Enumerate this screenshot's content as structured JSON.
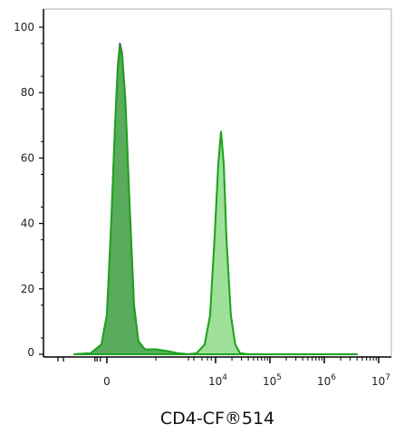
{
  "chart_data": {
    "type": "area",
    "title": "",
    "xlabel": "CD4-CF®514",
    "ylabel": "",
    "ylim": [
      0,
      105
    ],
    "grid": false,
    "legend": "none",
    "x_scale": "biexponential",
    "y_ticks": [
      {
        "value": 0,
        "label": "0"
      },
      {
        "value": 20,
        "label": "20"
      },
      {
        "value": 40,
        "label": "40"
      },
      {
        "value": 60,
        "label": "60"
      },
      {
        "value": 80,
        "label": "80"
      },
      {
        "value": 100,
        "label": "100"
      }
    ],
    "x_ticks": [
      {
        "label": "0",
        "exp": ""
      },
      {
        "label": "10",
        "exp": "4"
      },
      {
        "label": "10",
        "exp": "5"
      },
      {
        "label": "10",
        "exp": "6"
      },
      {
        "label": "10",
        "exp": "7"
      }
    ],
    "series": [
      {
        "fill": "#8a8a8a",
        "stroke": "#555555",
        "points": [
          [
            -0.6,
            0
          ],
          [
            -0.3,
            0.3
          ],
          [
            -0.1,
            3
          ],
          [
            0.0,
            12
          ],
          [
            0.08,
            40
          ],
          [
            0.15,
            70
          ],
          [
            0.2,
            88
          ],
          [
            0.24,
            95
          ],
          [
            0.28,
            92
          ],
          [
            0.34,
            78
          ],
          [
            0.42,
            45
          ],
          [
            0.5,
            15
          ],
          [
            0.58,
            4
          ],
          [
            0.7,
            1.5
          ],
          [
            0.9,
            1.5
          ],
          [
            1.1,
            1
          ],
          [
            1.3,
            0.3
          ],
          [
            1.5,
            0
          ],
          [
            4.6,
            0
          ]
        ]
      },
      {
        "fill": "#4caf50",
        "stroke": "#1fa31f",
        "points": [
          [
            -0.6,
            0
          ],
          [
            -0.3,
            0.3
          ],
          [
            -0.1,
            3
          ],
          [
            0.0,
            12
          ],
          [
            0.08,
            40
          ],
          [
            0.15,
            70
          ],
          [
            0.2,
            87
          ],
          [
            0.24,
            94
          ],
          [
            0.28,
            91
          ],
          [
            0.34,
            77
          ],
          [
            0.42,
            44
          ],
          [
            0.5,
            14
          ],
          [
            0.58,
            4
          ],
          [
            0.7,
            1.5
          ],
          [
            0.9,
            1.5
          ],
          [
            1.1,
            1
          ],
          [
            1.3,
            0.3
          ],
          [
            1.5,
            0
          ],
          [
            1.65,
            0.3
          ],
          [
            1.8,
            3
          ],
          [
            1.9,
            12
          ],
          [
            1.98,
            35
          ],
          [
            2.05,
            58
          ],
          [
            2.1,
            68
          ],
          [
            2.15,
            58
          ],
          [
            2.2,
            35
          ],
          [
            2.28,
            12
          ],
          [
            2.36,
            3
          ],
          [
            2.45,
            0.3
          ],
          [
            2.6,
            0
          ],
          [
            4.6,
            0
          ]
        ]
      },
      {
        "fill": "#9ee09a",
        "stroke": "#1fa31f",
        "points": [
          [
            1.5,
            0
          ],
          [
            1.65,
            0.3
          ],
          [
            1.8,
            3
          ],
          [
            1.9,
            12
          ],
          [
            1.98,
            35
          ],
          [
            2.05,
            58
          ],
          [
            2.1,
            68
          ],
          [
            2.15,
            58
          ],
          [
            2.2,
            35
          ],
          [
            2.28,
            12
          ],
          [
            2.36,
            3
          ],
          [
            2.45,
            0.3
          ],
          [
            2.6,
            0
          ]
        ]
      }
    ]
  }
}
